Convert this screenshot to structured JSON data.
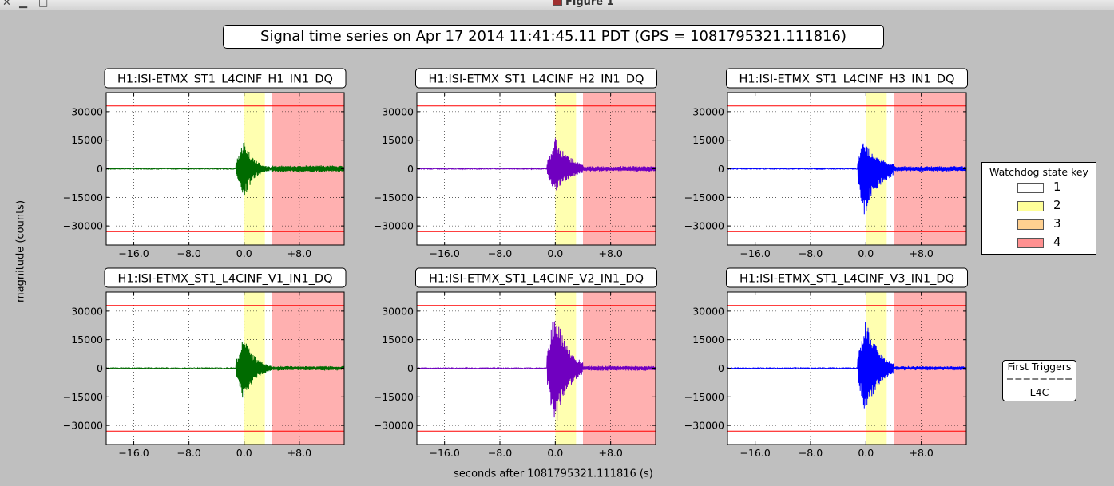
{
  "window": {
    "title": "Figure 1",
    "controls": [
      "close-icon",
      "minimize-icon",
      "maximize-icon"
    ]
  },
  "figure": {
    "title": "Signal time series on Apr 17 2014 11:41:45.11 PDT (GPS = 1081795321.111816)",
    "ylabel": "magnitude (counts)",
    "xlabel": "seconds after 1081795321.111816 (s)"
  },
  "legend": {
    "title": "Watchdog state key",
    "items": [
      {
        "label": "1",
        "color": "#ffffff"
      },
      {
        "label": "2",
        "color": "#ffff99"
      },
      {
        "label": "3",
        "color": "#ffd090"
      },
      {
        "label": "4",
        "color": "#ff9090"
      }
    ]
  },
  "triggers_box": {
    "title": "First Triggers",
    "separator": "========",
    "value": "L4C"
  },
  "colors": {
    "state2_band": "#ffffb0",
    "state4_band": "#ffb0b0",
    "threshold": "#ff0000",
    "green": "#006b00",
    "purple": "#7000c0",
    "blue": "#0000ff"
  },
  "chart_data": [
    {
      "type": "line",
      "title": "H1:ISI-ETMX_ST1_L4CINF_H1_IN1_DQ",
      "color": "#006b00",
      "peak": 16000,
      "trough": -16000,
      "tail": 1600,
      "decay": 1.4,
      "sharp": 0,
      "xlim": [
        -20,
        14.5
      ],
      "ylim": [
        -40000,
        40000
      ],
      "xticks": [
        "-16.0",
        "-8.0",
        "0.0",
        "+8.0"
      ],
      "xtick_values": [
        -16,
        -8,
        0,
        8
      ],
      "yticks": [
        "30000",
        "15000",
        "0",
        "-15000",
        "-30000"
      ],
      "ytick_values": [
        30000,
        15000,
        0,
        -15000,
        -30000
      ],
      "thresholds": [
        33000,
        -33000
      ],
      "bands": [
        {
          "state": 2,
          "x": [
            0,
            3
          ]
        },
        {
          "state": 4,
          "x": [
            4,
            14.5
          ]
        }
      ]
    },
    {
      "type": "line",
      "title": "H1:ISI-ETMX_ST1_L4CINF_H2_IN1_DQ",
      "color": "#7000c0",
      "peak": 16500,
      "trough": -13500,
      "tail": 1200,
      "decay": 2.2,
      "sharp": 0,
      "xlim": [
        -20,
        14.5
      ],
      "ylim": [
        -40000,
        40000
      ],
      "xticks": [
        "-16.0",
        "-8.0",
        "0.0",
        "+8.0"
      ],
      "xtick_values": [
        -16,
        -8,
        0,
        8
      ],
      "yticks": [
        "30000",
        "15000",
        "0",
        "-15000",
        "-30000"
      ],
      "ytick_values": [
        30000,
        15000,
        0,
        -15000,
        -30000
      ],
      "thresholds": [
        33000,
        -33000
      ],
      "bands": [
        {
          "state": 2,
          "x": [
            0,
            3
          ]
        },
        {
          "state": 4,
          "x": [
            4,
            14.5
          ]
        }
      ]
    },
    {
      "type": "line",
      "title": "H1:ISI-ETMX_ST1_L4CINF_H3_IN1_DQ",
      "color": "#0000ff",
      "peak": 16000,
      "trough": -26000,
      "tail": 1200,
      "decay": 2.2,
      "sharp": 1,
      "xlim": [
        -20,
        14.5
      ],
      "ylim": [
        -40000,
        40000
      ],
      "xticks": [
        "-16.0",
        "-8.0",
        "0.0",
        "+8.0"
      ],
      "xtick_values": [
        -16,
        -8,
        0,
        8
      ],
      "yticks": [
        "30000",
        "15000",
        "0",
        "-15000",
        "-30000"
      ],
      "ytick_values": [
        30000,
        15000,
        0,
        -15000,
        -30000
      ],
      "thresholds": [
        33000,
        -33000
      ],
      "bands": [
        {
          "state": 2,
          "x": [
            0,
            3
          ]
        },
        {
          "state": 4,
          "x": [
            4,
            14.5
          ]
        }
      ]
    },
    {
      "type": "line",
      "title": "H1:ISI-ETMX_ST1_L4CINF_V1_IN1_DQ",
      "color": "#006b00",
      "peak": 17000,
      "trough": -17500,
      "tail": 1000,
      "decay": 1.6,
      "sharp": 0,
      "xlim": [
        -20,
        14.5
      ],
      "ylim": [
        -40000,
        40000
      ],
      "xticks": [
        "-16.0",
        "-8.0",
        "0.0",
        "+8.0"
      ],
      "xtick_values": [
        -16,
        -8,
        0,
        8
      ],
      "yticks": [
        "30000",
        "15000",
        "0",
        "-15000",
        "-30000"
      ],
      "ytick_values": [
        30000,
        15000,
        0,
        -15000,
        -30000
      ],
      "thresholds": [
        33000,
        -33000
      ],
      "bands": [
        {
          "state": 2,
          "x": [
            0,
            3
          ]
        },
        {
          "state": 4,
          "x": [
            4,
            14.5
          ]
        }
      ]
    },
    {
      "type": "line",
      "title": "H1:ISI-ETMX_ST1_L4CINF_V2_IN1_DQ",
      "color": "#7000c0",
      "peak": 33000,
      "trough": -33000,
      "tail": 1100,
      "decay": 1.8,
      "sharp": 0,
      "xlim": [
        -20,
        14.5
      ],
      "ylim": [
        -40000,
        40000
      ],
      "xticks": [
        "-16.0",
        "-8.0",
        "0.0",
        "+8.0"
      ],
      "xtick_values": [
        -16,
        -8,
        0,
        8
      ],
      "yticks": [
        "30000",
        "15000",
        "0",
        "-15000",
        "-30000"
      ],
      "ytick_values": [
        30000,
        15000,
        0,
        -15000,
        -30000
      ],
      "thresholds": [
        33000,
        -33000
      ],
      "bands": [
        {
          "state": 2,
          "x": [
            0,
            3
          ]
        },
        {
          "state": 4,
          "x": [
            4,
            14.5
          ]
        }
      ]
    },
    {
      "type": "line",
      "title": "H1:ISI-ETMX_ST1_L4CINF_V3_IN1_DQ",
      "color": "#0000ff",
      "peak": 28000,
      "trough": -26000,
      "tail": 900,
      "decay": 1.8,
      "sharp": 0,
      "xlim": [
        -20,
        14.5
      ],
      "ylim": [
        -40000,
        40000
      ],
      "xticks": [
        "-16.0",
        "-8.0",
        "0.0",
        "+8.0"
      ],
      "xtick_values": [
        -16,
        -8,
        0,
        8
      ],
      "yticks": [
        "30000",
        "15000",
        "0",
        "-15000",
        "-30000"
      ],
      "ytick_values": [
        30000,
        15000,
        0,
        -15000,
        -30000
      ],
      "thresholds": [
        33000,
        -33000
      ],
      "bands": [
        {
          "state": 2,
          "x": [
            0,
            3
          ]
        },
        {
          "state": 4,
          "x": [
            4,
            14.5
          ]
        }
      ]
    }
  ]
}
